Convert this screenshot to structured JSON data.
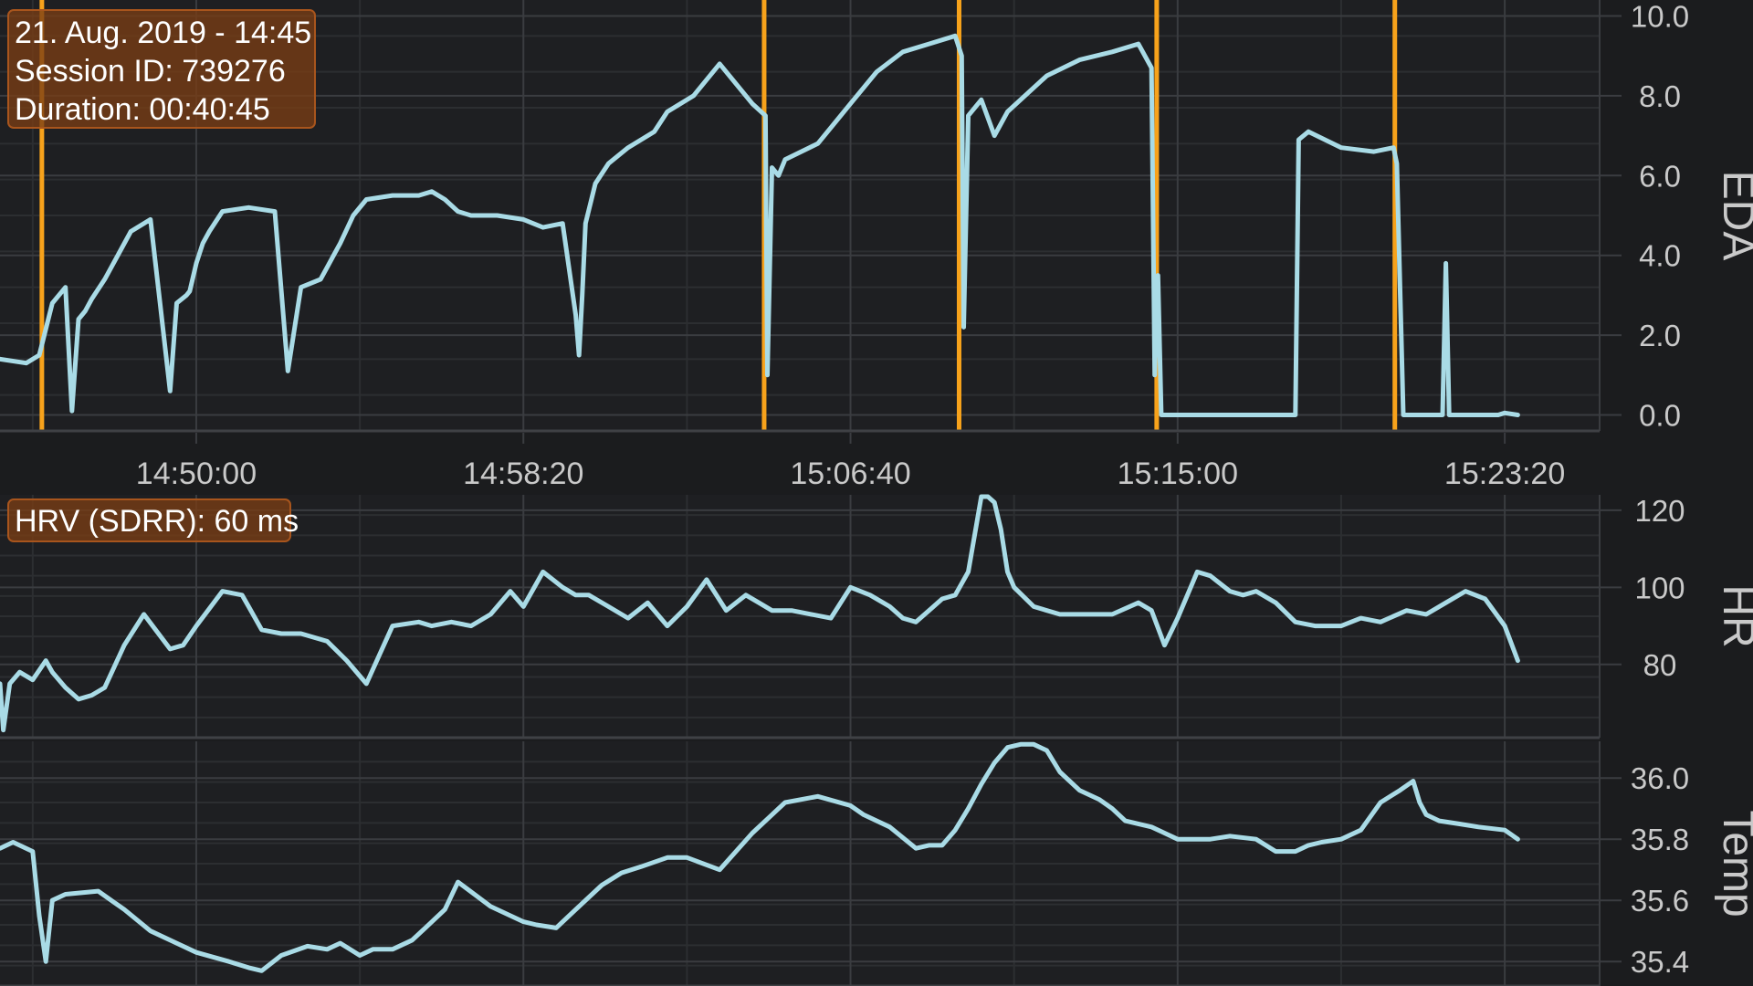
{
  "session": {
    "date_line": "21. Aug. 2019 - 14:45",
    "id_line": "Session ID: 739276",
    "duration_line": "Duration: 00:40:45"
  },
  "hrv_label": "HRV (SDRR): 60 ms",
  "colors": {
    "background": "#1b1c1e",
    "grid": "#3a3c40",
    "signal": "#a9dbe6",
    "marker": "#f7a21b",
    "axis_text": "#c9c9c9",
    "badge_fill": "#7a3e14",
    "badge_border": "#a8551d"
  },
  "x_axis": {
    "start": "14:45:00",
    "end": "15:25:45",
    "tick_labels": [
      "14:50:00",
      "14:58:20",
      "15:06:40",
      "15:15:00",
      "15:23:20"
    ],
    "tick_seconds": [
      300,
      800,
      1300,
      1800,
      2300
    ]
  },
  "chart_data": [
    {
      "type": "line",
      "id": "eda",
      "ylabel": "EDA",
      "ylim": [
        -0.4,
        10.4
      ],
      "yticks": [
        0.0,
        2.0,
        4.0,
        6.0,
        8.0,
        10.0
      ],
      "ytick_labels": [
        "0.0",
        "2.0",
        "4.0",
        "6.0",
        "8.0",
        "10.0"
      ],
      "x_seconds": [
        0,
        40,
        60,
        80,
        100,
        110,
        120,
        130,
        140,
        160,
        200,
        230,
        260,
        270,
        285,
        290,
        300,
        310,
        320,
        340,
        380,
        420,
        440,
        460,
        490,
        500,
        510,
        520,
        540,
        560,
        600,
        640,
        660,
        680,
        700,
        720,
        760,
        800,
        830,
        860,
        880,
        885,
        890,
        895,
        910,
        930,
        960,
        1000,
        1020,
        1060,
        1100,
        1150,
        1170,
        1173,
        1180,
        1190,
        1200,
        1250,
        1300,
        1340,
        1380,
        1420,
        1460,
        1470,
        1473,
        1480,
        1500,
        1520,
        1540,
        1600,
        1650,
        1700,
        1740,
        1760,
        1765,
        1770,
        1775,
        1780,
        1980,
        1985,
        2000,
        2050,
        2100,
        2130,
        2135,
        2145,
        2190,
        2205,
        2210,
        2215,
        2220,
        2270,
        2290,
        2300,
        2320
      ],
      "values": [
        1.4,
        1.3,
        1.5,
        2.8,
        3.2,
        0.1,
        2.4,
        2.6,
        2.9,
        3.4,
        4.6,
        4.9,
        0.6,
        2.8,
        3.0,
        3.1,
        3.8,
        4.3,
        4.6,
        5.1,
        5.2,
        5.1,
        1.1,
        3.2,
        3.4,
        3.7,
        4.0,
        4.3,
        5.0,
        5.4,
        5.5,
        5.5,
        5.6,
        5.4,
        5.1,
        5.0,
        5.0,
        4.9,
        4.7,
        4.8,
        2.5,
        1.5,
        3.0,
        4.8,
        5.8,
        6.3,
        6.7,
        7.1,
        7.6,
        8.0,
        8.8,
        7.8,
        7.5,
        1.0,
        6.2,
        6.0,
        6.4,
        6.8,
        7.8,
        8.6,
        9.1,
        9.3,
        9.5,
        9.0,
        2.2,
        7.5,
        7.9,
        7.0,
        7.6,
        8.5,
        8.9,
        9.1,
        9.3,
        8.7,
        1.0,
        3.5,
        0.0,
        0.0,
        0.0,
        6.9,
        7.1,
        6.7,
        6.6,
        6.7,
        6.3,
        0.0,
        0.0,
        0.0,
        3.8,
        0.0,
        0.0,
        0.0,
        0.0,
        0.05,
        0.0
      ]
    },
    {
      "type": "line",
      "id": "hr",
      "ylabel": "HR",
      "ylim": [
        61,
        124
      ],
      "yticks": [
        80,
        100,
        120
      ],
      "ytick_labels": [
        "80",
        "100",
        "120"
      ],
      "x_seconds": [
        0,
        5,
        15,
        30,
        50,
        70,
        80,
        100,
        120,
        140,
        160,
        190,
        220,
        260,
        280,
        300,
        340,
        370,
        380,
        400,
        430,
        460,
        500,
        530,
        560,
        600,
        640,
        660,
        690,
        720,
        750,
        780,
        800,
        830,
        860,
        880,
        900,
        930,
        960,
        990,
        1020,
        1050,
        1080,
        1110,
        1140,
        1160,
        1180,
        1210,
        1240,
        1270,
        1300,
        1330,
        1360,
        1380,
        1400,
        1420,
        1440,
        1460,
        1480,
        1500,
        1510,
        1520,
        1530,
        1540,
        1550,
        1580,
        1620,
        1660,
        1700,
        1740,
        1760,
        1780,
        1800,
        1830,
        1850,
        1880,
        1900,
        1920,
        1950,
        1980,
        2010,
        2050,
        2080,
        2110,
        2150,
        2180,
        2210,
        2240,
        2270,
        2300,
        2320
      ],
      "values": [
        75,
        63,
        75,
        78,
        76,
        81,
        78,
        74,
        71,
        72,
        74,
        85,
        93,
        84,
        85,
        90,
        99,
        98,
        95,
        89,
        88,
        88,
        86,
        81,
        75,
        90,
        91,
        90,
        91,
        90,
        93,
        99,
        95,
        104,
        100,
        98,
        98,
        95,
        92,
        96,
        90,
        95,
        102,
        94,
        98,
        96,
        94,
        94,
        93,
        92,
        100,
        98,
        95,
        92,
        91,
        94,
        97,
        98,
        104,
        124,
        125,
        122,
        115,
        104,
        100,
        95,
        93,
        93,
        93,
        96,
        94,
        85,
        92,
        104,
        103,
        99,
        98,
        99,
        96,
        91,
        90,
        90,
        92,
        91,
        94,
        93,
        96,
        99,
        97,
        90,
        81
      ]
    },
    {
      "type": "line",
      "id": "temp",
      "ylabel": "Temp",
      "ylim": [
        35.32,
        36.12
      ],
      "yticks": [
        35.4,
        35.6,
        35.8,
        36.0
      ],
      "ytick_labels": [
        "35.4",
        "35.6",
        "35.8",
        "36.0"
      ],
      "x_seconds": [
        0,
        20,
        50,
        60,
        70,
        80,
        100,
        150,
        190,
        230,
        270,
        300,
        350,
        380,
        400,
        430,
        470,
        500,
        520,
        550,
        570,
        600,
        630,
        650,
        680,
        700,
        750,
        800,
        820,
        850,
        880,
        920,
        950,
        980,
        1020,
        1050,
        1100,
        1150,
        1180,
        1200,
        1250,
        1300,
        1320,
        1360,
        1400,
        1420,
        1440,
        1460,
        1480,
        1500,
        1520,
        1540,
        1560,
        1580,
        1600,
        1620,
        1650,
        1680,
        1700,
        1720,
        1740,
        1760,
        1780,
        1800,
        1850,
        1880,
        1920,
        1950,
        1980,
        2000,
        2020,
        2050,
        2080,
        2110,
        2140,
        2160,
        2170,
        2180,
        2200,
        2230,
        2260,
        2300,
        2320
      ],
      "values": [
        35.77,
        35.79,
        35.76,
        35.55,
        35.4,
        35.6,
        35.62,
        35.63,
        35.57,
        35.5,
        35.46,
        35.43,
        35.4,
        35.38,
        35.37,
        35.42,
        35.45,
        35.44,
        35.46,
        35.42,
        35.44,
        35.44,
        35.47,
        35.51,
        35.57,
        35.66,
        35.58,
        35.53,
        35.52,
        35.51,
        35.57,
        35.65,
        35.69,
        35.71,
        35.74,
        35.74,
        35.7,
        35.82,
        35.88,
        35.92,
        35.94,
        35.91,
        35.88,
        35.84,
        35.77,
        35.78,
        35.78,
        35.83,
        35.9,
        35.98,
        36.05,
        36.1,
        36.11,
        36.11,
        36.09,
        36.02,
        35.96,
        35.93,
        35.9,
        35.86,
        35.85,
        35.84,
        35.82,
        35.8,
        35.8,
        35.81,
        35.8,
        35.76,
        35.76,
        35.78,
        35.79,
        35.8,
        35.83,
        35.92,
        35.96,
        35.99,
        35.92,
        35.88,
        35.86,
        35.85,
        35.84,
        35.83,
        35.8
      ]
    }
  ],
  "marker_seconds": [
    64,
    1168,
    1466,
    1768,
    2132
  ]
}
